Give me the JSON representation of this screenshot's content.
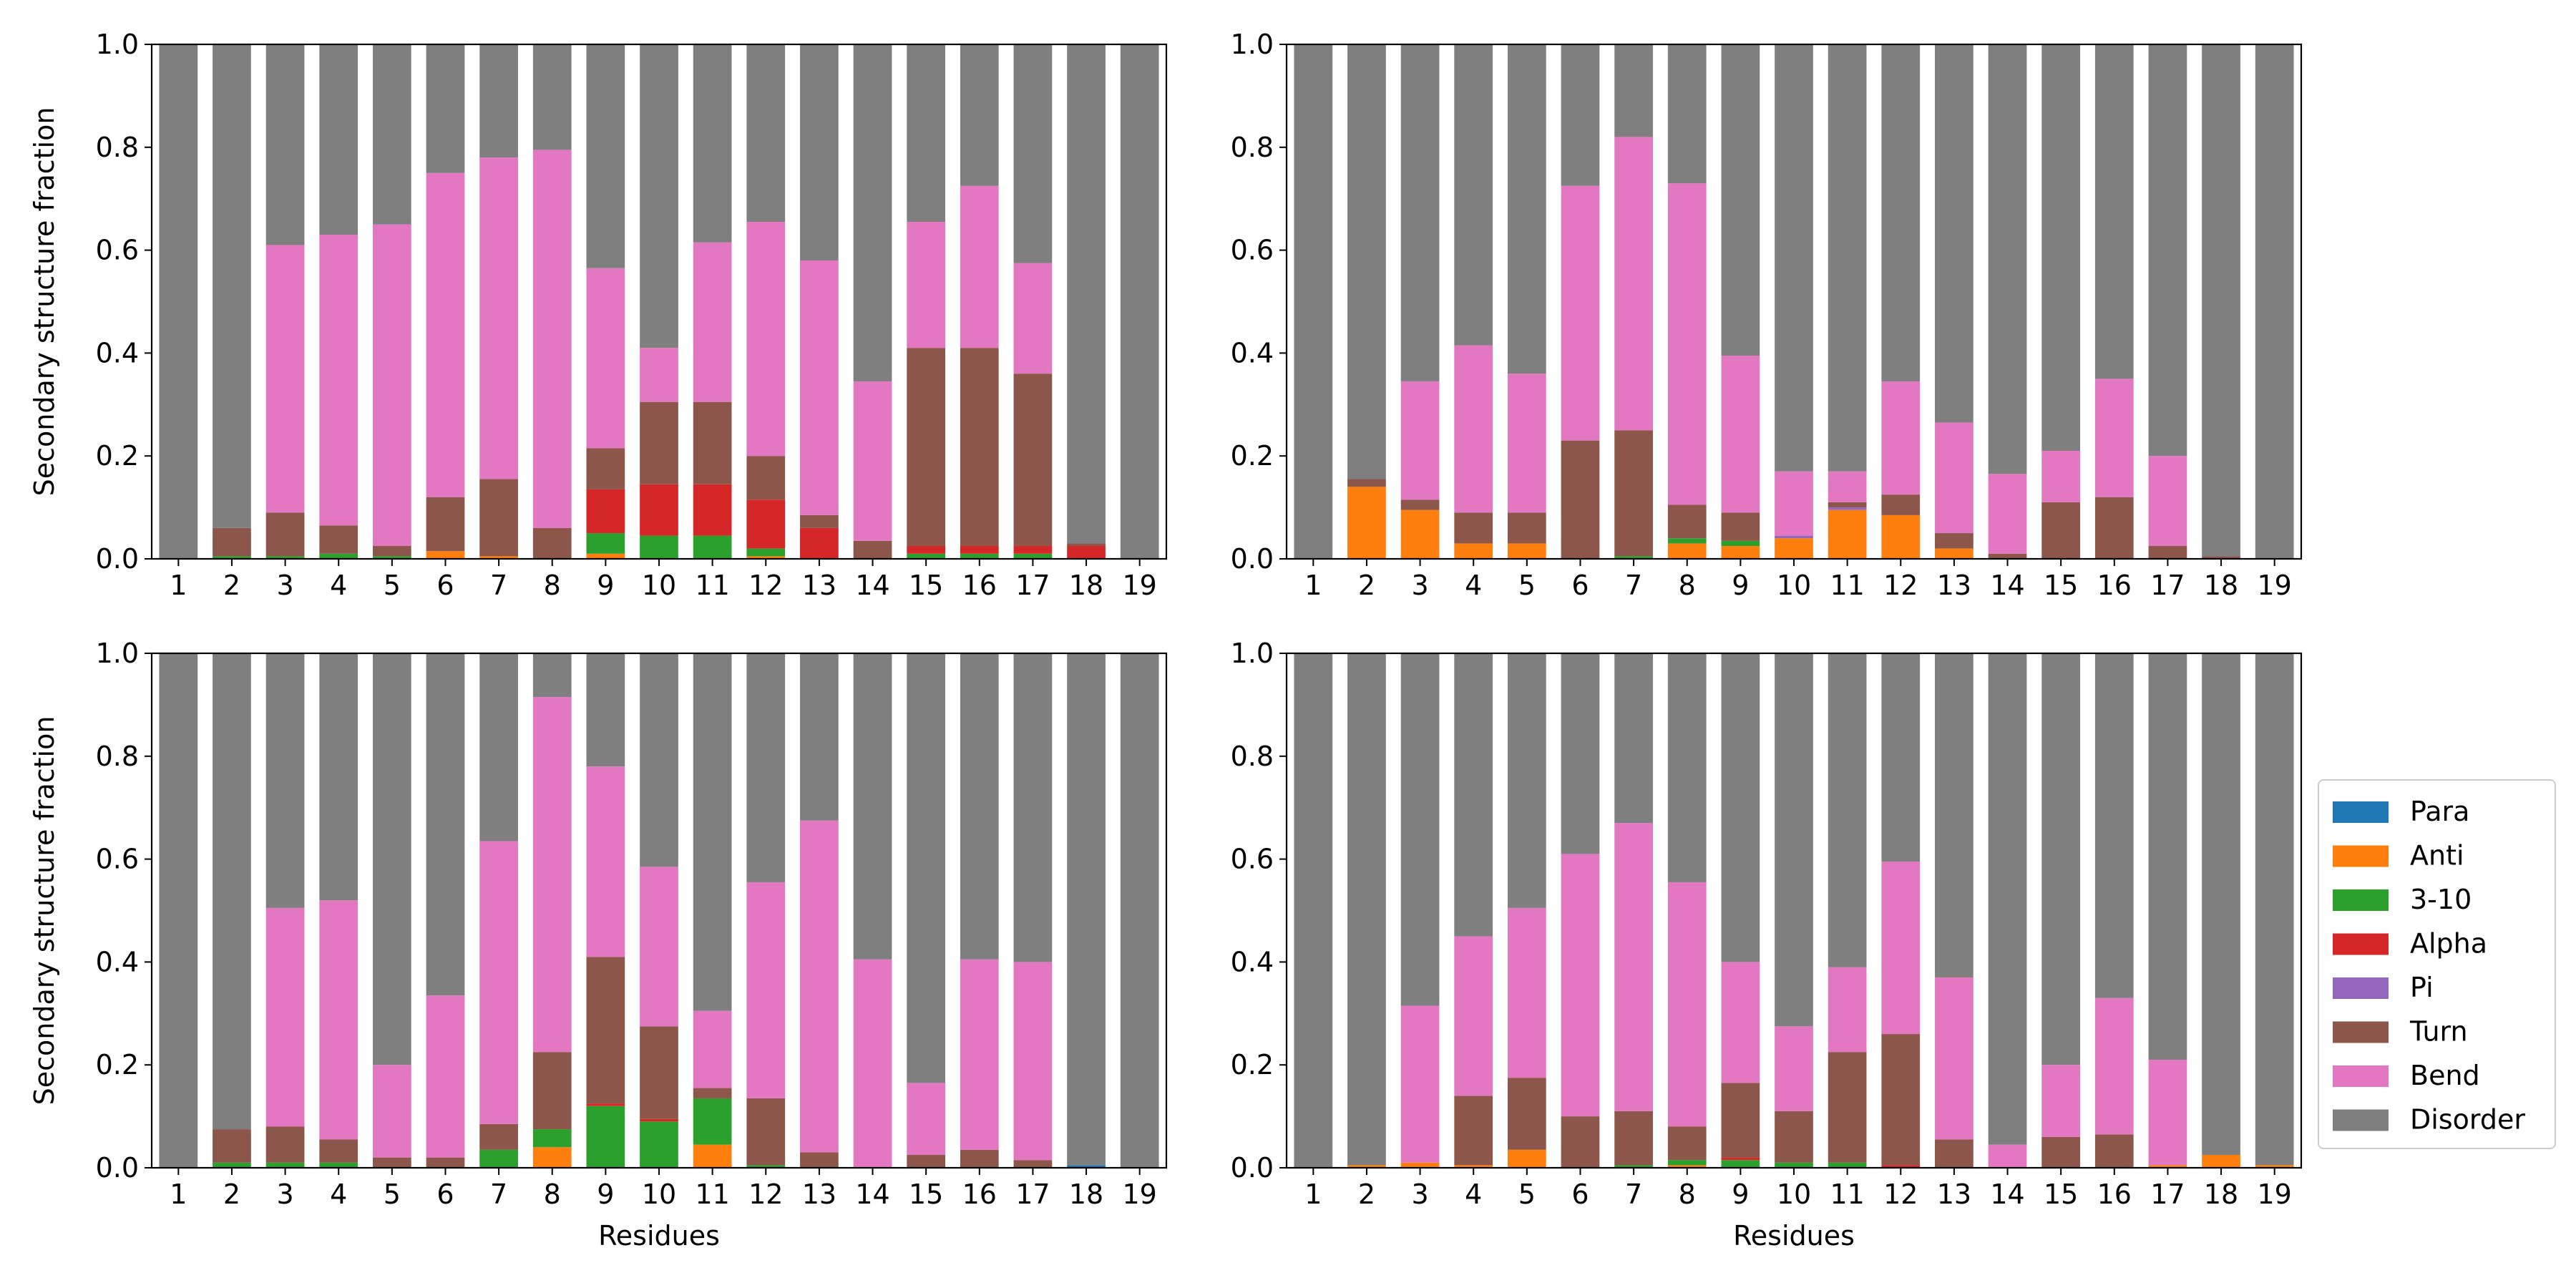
{
  "chart_data": [
    {
      "type": "bar",
      "stacked": true,
      "panel": "top-left",
      "title": "",
      "xlabel": "",
      "ylabel": "Secondary structure fraction",
      "ylim": [
        0,
        1.0
      ],
      "yticks": [
        "0.0",
        "0.2",
        "0.4",
        "0.6",
        "0.8",
        "1.0"
      ],
      "categories": [
        "1",
        "2",
        "3",
        "4",
        "5",
        "6",
        "7",
        "8",
        "9",
        "10",
        "11",
        "12",
        "13",
        "14",
        "15",
        "16",
        "17",
        "18",
        "19"
      ],
      "series": [
        {
          "name": "Para",
          "values": [
            0,
            0,
            0,
            0,
            0,
            0,
            0,
            0,
            0,
            0,
            0,
            0,
            0,
            0,
            0,
            0,
            0,
            0,
            0
          ]
        },
        {
          "name": "Anti",
          "values": [
            0,
            0,
            0,
            0,
            0,
            0.015,
            0.005,
            0,
            0.01,
            0,
            0,
            0.005,
            0,
            0,
            0,
            0,
            0,
            0,
            0
          ]
        },
        {
          "name": "3-10",
          "values": [
            0,
            0.005,
            0.005,
            0.01,
            0.005,
            0,
            0,
            0,
            0.04,
            0.045,
            0.045,
            0.015,
            0,
            0,
            0.01,
            0.01,
            0.01,
            0,
            0
          ]
        },
        {
          "name": "Alpha",
          "values": [
            0,
            0,
            0,
            0,
            0,
            0,
            0,
            0,
            0.085,
            0.1,
            0.1,
            0.095,
            0.06,
            0,
            0.015,
            0.015,
            0.015,
            0.025,
            0
          ]
        },
        {
          "name": "Pi",
          "values": [
            0,
            0,
            0,
            0,
            0,
            0,
            0,
            0,
            0,
            0,
            0,
            0,
            0,
            0,
            0,
            0,
            0,
            0,
            0
          ]
        },
        {
          "name": "Turn",
          "values": [
            0,
            0.055,
            0.085,
            0.055,
            0.02,
            0.105,
            0.15,
            0.06,
            0.08,
            0.16,
            0.16,
            0.085,
            0.025,
            0.035,
            0.385,
            0.385,
            0.335,
            0.005,
            0
          ]
        },
        {
          "name": "Bend",
          "values": [
            0,
            0,
            0.52,
            0.565,
            0.625,
            0.63,
            0.625,
            0.735,
            0.35,
            0.105,
            0.31,
            0.455,
            0.495,
            0.31,
            0.245,
            0.315,
            0.215,
            0,
            0
          ]
        },
        {
          "name": "Disorder",
          "values": [
            1,
            0.94,
            0.39,
            0.37,
            0.35,
            0.25,
            0.22,
            0.205,
            0.435,
            0.59,
            0.385,
            0.345,
            0.42,
            0.655,
            0.345,
            0.275,
            0.425,
            0.97,
            1
          ]
        }
      ]
    },
    {
      "type": "bar",
      "stacked": true,
      "panel": "top-right",
      "title": "",
      "xlabel": "",
      "ylabel": "",
      "ylim": [
        0,
        1.0
      ],
      "yticks": [
        "0.0",
        "0.2",
        "0.4",
        "0.6",
        "0.8",
        "1.0"
      ],
      "categories": [
        "1",
        "2",
        "3",
        "4",
        "5",
        "6",
        "7",
        "8",
        "9",
        "10",
        "11",
        "12",
        "13",
        "14",
        "15",
        "16",
        "17",
        "18",
        "19"
      ],
      "series": [
        {
          "name": "Para",
          "values": [
            0,
            0,
            0,
            0,
            0,
            0,
            0,
            0,
            0,
            0,
            0,
            0,
            0,
            0,
            0,
            0,
            0,
            0,
            0
          ]
        },
        {
          "name": "Anti",
          "values": [
            0,
            0.14,
            0.095,
            0.03,
            0.03,
            0,
            0,
            0.03,
            0.025,
            0.04,
            0.095,
            0.085,
            0.02,
            0,
            0,
            0,
            0,
            0,
            0
          ]
        },
        {
          "name": "3-10",
          "values": [
            0,
            0,
            0,
            0,
            0,
            0,
            0.005,
            0.01,
            0.01,
            0,
            0,
            0,
            0,
            0,
            0,
            0,
            0,
            0,
            0
          ]
        },
        {
          "name": "Alpha",
          "values": [
            0,
            0,
            0,
            0,
            0,
            0,
            0,
            0,
            0,
            0,
            0,
            0,
            0,
            0,
            0,
            0,
            0,
            0,
            0
          ]
        },
        {
          "name": "Pi",
          "values": [
            0,
            0,
            0,
            0,
            0,
            0,
            0,
            0,
            0,
            0.005,
            0.005,
            0,
            0,
            0,
            0,
            0,
            0,
            0,
            0
          ]
        },
        {
          "name": "Turn",
          "values": [
            0,
            0.015,
            0.02,
            0.06,
            0.06,
            0.23,
            0.245,
            0.065,
            0.055,
            0,
            0.01,
            0.04,
            0.03,
            0.01,
            0.11,
            0.12,
            0.025,
            0.005,
            0
          ]
        },
        {
          "name": "Bend",
          "values": [
            0,
            0,
            0.23,
            0.325,
            0.27,
            0.495,
            0.57,
            0.625,
            0.305,
            0.125,
            0.06,
            0.22,
            0.215,
            0.155,
            0.1,
            0.23,
            0.175,
            0,
            0
          ]
        },
        {
          "name": "Disorder",
          "values": [
            1,
            0.845,
            0.655,
            0.585,
            0.64,
            0.275,
            0.18,
            0.27,
            0.605,
            0.83,
            0.83,
            0.655,
            0.735,
            0.835,
            0.79,
            0.65,
            0.8,
            0.995,
            1
          ]
        }
      ]
    },
    {
      "type": "bar",
      "stacked": true,
      "panel": "bottom-left",
      "title": "",
      "xlabel": "Residues",
      "ylabel": "Secondary structure fraction",
      "ylim": [
        0,
        1.0
      ],
      "yticks": [
        "0.0",
        "0.2",
        "0.4",
        "0.6",
        "0.8",
        "1.0"
      ],
      "categories": [
        "1",
        "2",
        "3",
        "4",
        "5",
        "6",
        "7",
        "8",
        "9",
        "10",
        "11",
        "12",
        "13",
        "14",
        "15",
        "16",
        "17",
        "18",
        "19"
      ],
      "series": [
        {
          "name": "Para",
          "values": [
            0,
            0,
            0,
            0,
            0,
            0,
            0,
            0,
            0,
            0,
            0,
            0,
            0,
            0,
            0,
            0,
            0,
            0.005,
            0
          ]
        },
        {
          "name": "Anti",
          "values": [
            0,
            0,
            0,
            0,
            0,
            0,
            0,
            0.04,
            0,
            0,
            0.045,
            0,
            0,
            0,
            0,
            0,
            0,
            0,
            0
          ]
        },
        {
          "name": "3-10",
          "values": [
            0,
            0.01,
            0.01,
            0.01,
            0,
            0,
            0.035,
            0.035,
            0.12,
            0.09,
            0.09,
            0.005,
            0,
            0,
            0,
            0,
            0,
            0,
            0
          ]
        },
        {
          "name": "Alpha",
          "values": [
            0,
            0,
            0,
            0,
            0,
            0,
            0,
            0,
            0.005,
            0.005,
            0,
            0,
            0,
            0,
            0,
            0,
            0,
            0,
            0
          ]
        },
        {
          "name": "Pi",
          "values": [
            0,
            0,
            0,
            0,
            0,
            0,
            0,
            0,
            0,
            0,
            0,
            0,
            0,
            0,
            0,
            0,
            0,
            0,
            0
          ]
        },
        {
          "name": "Turn",
          "values": [
            0,
            0.065,
            0.07,
            0.045,
            0.02,
            0.02,
            0.05,
            0.15,
            0.285,
            0.18,
            0.02,
            0.13,
            0.03,
            0,
            0.025,
            0.035,
            0.015,
            0,
            0
          ]
        },
        {
          "name": "Bend",
          "values": [
            0,
            0,
            0.425,
            0.465,
            0.18,
            0.315,
            0.55,
            0.69,
            0.37,
            0.31,
            0.15,
            0.42,
            0.645,
            0.405,
            0.14,
            0.37,
            0.385,
            0,
            0
          ]
        },
        {
          "name": "Disorder",
          "values": [
            1,
            0.925,
            0.495,
            0.48,
            0.8,
            0.665,
            0.365,
            0.085,
            0.22,
            0.415,
            0.695,
            0.445,
            0.325,
            0.595,
            0.835,
            0.595,
            0.6,
            0.995,
            1
          ]
        }
      ]
    },
    {
      "type": "bar",
      "stacked": true,
      "panel": "bottom-right",
      "title": "",
      "xlabel": "Residues",
      "ylabel": "",
      "ylim": [
        0,
        1.0
      ],
      "yticks": [
        "0.0",
        "0.2",
        "0.4",
        "0.6",
        "0.8",
        "1.0"
      ],
      "categories": [
        "1",
        "2",
        "3",
        "4",
        "5",
        "6",
        "7",
        "8",
        "9",
        "10",
        "11",
        "12",
        "13",
        "14",
        "15",
        "16",
        "17",
        "18",
        "19"
      ],
      "series": [
        {
          "name": "Para",
          "values": [
            0,
            0,
            0,
            0,
            0,
            0,
            0,
            0,
            0,
            0,
            0,
            0,
            0,
            0,
            0,
            0,
            0,
            0,
            0
          ]
        },
        {
          "name": "Anti",
          "values": [
            0,
            0.005,
            0.01,
            0.005,
            0.035,
            0,
            0,
            0.005,
            0,
            0,
            0,
            0,
            0,
            0,
            0,
            0,
            0.005,
            0.025,
            0.005
          ]
        },
        {
          "name": "3-10",
          "values": [
            0,
            0,
            0,
            0,
            0,
            0,
            0.005,
            0.01,
            0.015,
            0.01,
            0.01,
            0,
            0,
            0,
            0,
            0,
            0,
            0,
            0
          ]
        },
        {
          "name": "Alpha",
          "values": [
            0,
            0,
            0,
            0,
            0,
            0,
            0,
            0,
            0.005,
            0,
            0,
            0.005,
            0,
            0,
            0,
            0,
            0,
            0,
            0
          ]
        },
        {
          "name": "Pi",
          "values": [
            0,
            0,
            0,
            0,
            0,
            0,
            0,
            0,
            0,
            0,
            0,
            0,
            0,
            0,
            0,
            0,
            0,
            0,
            0
          ]
        },
        {
          "name": "Turn",
          "values": [
            0,
            0,
            0,
            0.135,
            0.14,
            0.1,
            0.105,
            0.065,
            0.145,
            0.1,
            0.215,
            0.255,
            0.055,
            0,
            0.06,
            0.065,
            0,
            0,
            0
          ]
        },
        {
          "name": "Bend",
          "values": [
            0,
            0,
            0.305,
            0.31,
            0.33,
            0.51,
            0.56,
            0.475,
            0.235,
            0.165,
            0.165,
            0.335,
            0.315,
            0.045,
            0.14,
            0.265,
            0.205,
            0,
            0
          ]
        },
        {
          "name": "Disorder",
          "values": [
            1,
            0.995,
            0.685,
            0.55,
            0.495,
            0.39,
            0.33,
            0.445,
            0.6,
            0.725,
            0.61,
            0.405,
            0.63,
            0.955,
            0.8,
            0.67,
            0.79,
            0.975,
            0.995
          ]
        }
      ]
    }
  ],
  "legend": {
    "placement": "right",
    "items": [
      {
        "label": "Para",
        "color": "#1f77b4"
      },
      {
        "label": "Anti",
        "color": "#ff7f0e"
      },
      {
        "label": "3-10",
        "color": "#2ca02c"
      },
      {
        "label": "Alpha",
        "color": "#d62728"
      },
      {
        "label": "Pi",
        "color": "#9467bd"
      },
      {
        "label": "Turn",
        "color": "#8c564b"
      },
      {
        "label": "Bend",
        "color": "#e377c2"
      },
      {
        "label": "Disorder",
        "color": "#7f7f7f"
      }
    ]
  }
}
